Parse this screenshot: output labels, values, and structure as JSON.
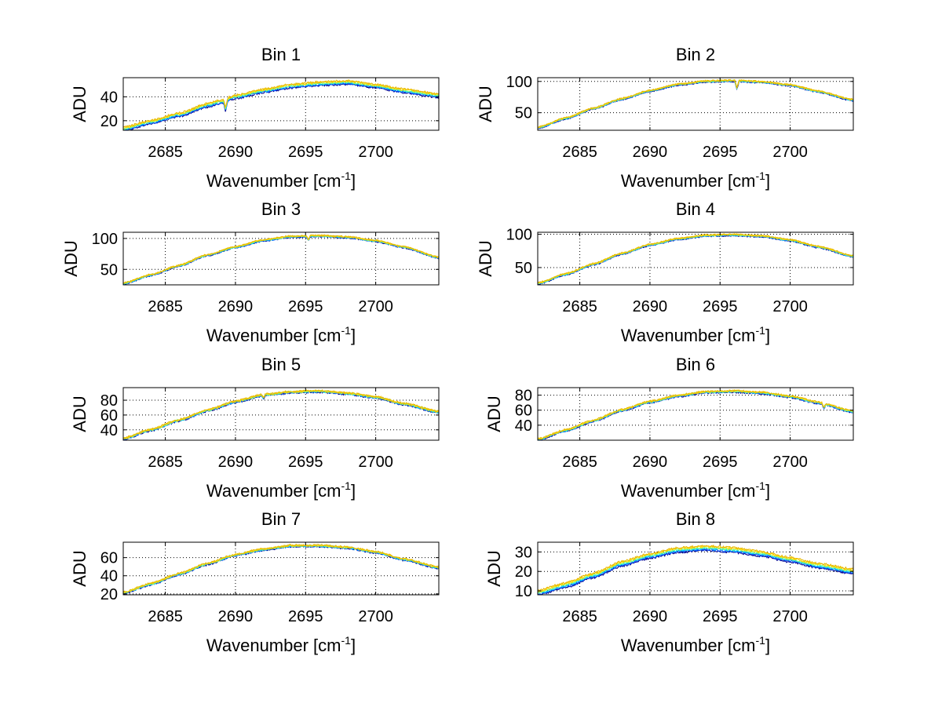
{
  "figure": {
    "colors": [
      "#00008f",
      "#0050ff",
      "#00cfff",
      "#7fff7f",
      "#ffd800",
      "#e8b800"
    ],
    "axes_color": "#000000",
    "grid": "dotted"
  },
  "chart_data": [
    {
      "type": "line",
      "title": "Bin 1",
      "xlabel": "Wavenumber [cm",
      "xlabel_sup": "-1",
      "xlabel_tail": "]",
      "ylabel": "ADU",
      "xlim": [
        2682,
        2704.5
      ],
      "ylim": [
        12,
        56
      ],
      "xticks": [
        2685,
        2690,
        2695,
        2700
      ],
      "yticks": [
        20,
        40
      ],
      "x": [
        2682,
        2684,
        2686,
        2688,
        2689,
        2690,
        2692,
        2694,
        2696,
        2698,
        2700,
        2702,
        2704.5
      ],
      "y": [
        13,
        19,
        25,
        33,
        36,
        40,
        45,
        49,
        51,
        52,
        49,
        45,
        41
      ],
      "dips": [
        [
          2689.3,
          8
        ]
      ],
      "spread": 1.5,
      "noise": 0.8
    },
    {
      "type": "line",
      "title": "Bin 2",
      "xlabel": "Wavenumber [cm",
      "xlabel_sup": "-1",
      "xlabel_tail": "]",
      "ylabel": "ADU",
      "xlim": [
        2682,
        2704.5
      ],
      "ylim": [
        22,
        106
      ],
      "xticks": [
        2685,
        2690,
        2695,
        2700
      ],
      "yticks": [
        50,
        100
      ],
      "x": [
        2682,
        2684,
        2686,
        2688,
        2690,
        2692,
        2694,
        2696,
        2698,
        2700,
        2702,
        2704.5
      ],
      "y": [
        26,
        41,
        57,
        72,
        85,
        95,
        100,
        101,
        99,
        94,
        84,
        70
      ],
      "dips": [
        [
          2696.2,
          12
        ]
      ],
      "spread": 1.0,
      "noise": 1.2
    },
    {
      "type": "line",
      "title": "Bin 3",
      "xlabel": "Wavenumber [cm",
      "xlabel_sup": "-1",
      "xlabel_tail": "]",
      "ylabel": "ADU",
      "xlim": [
        2682,
        2704.5
      ],
      "ylim": [
        25,
        110
      ],
      "xticks": [
        2685,
        2690,
        2695,
        2700
      ],
      "yticks": [
        50,
        100
      ],
      "x": [
        2682,
        2684,
        2686,
        2688,
        2690,
        2692,
        2694,
        2696,
        2698,
        2700,
        2702,
        2704.5
      ],
      "y": [
        27,
        41,
        56,
        73,
        86,
        97,
        103,
        104,
        102,
        96,
        86,
        69
      ],
      "dips": [
        [
          2695.2,
          6
        ]
      ],
      "spread": 1.0,
      "noise": 1.2
    },
    {
      "type": "line",
      "title": "Bin 4",
      "xlabel": "Wavenumber [cm",
      "xlabel_sup": "-1",
      "xlabel_tail": "]",
      "ylabel": "ADU",
      "xlim": [
        2682,
        2704.5
      ],
      "ylim": [
        24,
        103
      ],
      "xticks": [
        2685,
        2690,
        2695,
        2700
      ],
      "yticks": [
        50,
        100
      ],
      "x": [
        2682,
        2684,
        2686,
        2688,
        2690,
        2692,
        2694,
        2696,
        2698,
        2700,
        2702,
        2704.5
      ],
      "y": [
        26,
        40,
        55,
        71,
        84,
        93,
        98,
        99,
        97,
        91,
        81,
        67
      ],
      "dips": [],
      "spread": 1.0,
      "noise": 1.1
    },
    {
      "type": "line",
      "title": "Bin 5",
      "xlabel": "Wavenumber [cm",
      "xlabel_sup": "-1",
      "xlabel_tail": "]",
      "ylabel": "ADU",
      "xlim": [
        2682,
        2704.5
      ],
      "ylim": [
        26,
        97
      ],
      "xticks": [
        2685,
        2690,
        2695,
        2700
      ],
      "yticks": [
        40,
        60,
        80
      ],
      "x": [
        2682,
        2684,
        2686,
        2688,
        2690,
        2692,
        2694,
        2696,
        2698,
        2700,
        2702,
        2704.5
      ],
      "y": [
        28,
        40,
        53,
        66,
        78,
        87,
        91,
        92,
        89,
        84,
        75,
        64
      ],
      "dips": [
        [
          2692.0,
          4
        ]
      ],
      "spread": 1.0,
      "noise": 1.3
    },
    {
      "type": "line",
      "title": "Bin 6",
      "xlabel": "Wavenumber [cm",
      "xlabel_sup": "-1",
      "xlabel_tail": "]",
      "ylabel": "ADU",
      "xlim": [
        2682,
        2704.5
      ],
      "ylim": [
        20,
        90
      ],
      "xticks": [
        2685,
        2690,
        2695,
        2700
      ],
      "yticks": [
        40,
        60,
        80
      ],
      "x": [
        2682,
        2684,
        2686,
        2688,
        2690,
        2692,
        2694,
        2696,
        2698,
        2700,
        2702,
        2704.5
      ],
      "y": [
        21,
        33,
        46,
        60,
        71,
        79,
        84,
        85,
        83,
        78,
        70,
        58
      ],
      "dips": [
        [
          2702.4,
          6
        ]
      ],
      "spread": 1.0,
      "noise": 1.2
    },
    {
      "type": "line",
      "title": "Bin 7",
      "xlabel": "Wavenumber [cm",
      "xlabel_sup": "-1",
      "xlabel_tail": "]",
      "ylabel": "ADU",
      "xlim": [
        2682,
        2704.5
      ],
      "ylim": [
        19,
        77
      ],
      "xticks": [
        2685,
        2690,
        2695,
        2700
      ],
      "yticks": [
        20,
        40,
        60
      ],
      "x": [
        2682,
        2684,
        2686,
        2688,
        2690,
        2692,
        2694,
        2696,
        2698,
        2700,
        2702,
        2704.5
      ],
      "y": [
        21,
        31,
        42,
        53,
        63,
        69,
        73,
        73,
        71,
        66,
        58,
        49
      ],
      "dips": [],
      "spread": 0.8,
      "noise": 1.0
    },
    {
      "type": "line",
      "title": "Bin 8",
      "xlabel": "Wavenumber [cm",
      "xlabel_sup": "-1",
      "xlabel_tail": "]",
      "ylabel": "ADU",
      "xlim": [
        2682,
        2704.5
      ],
      "ylim": [
        8,
        35
      ],
      "xticks": [
        2685,
        2690,
        2695,
        2700
      ],
      "yticks": [
        10,
        20,
        30
      ],
      "x": [
        2682,
        2684,
        2686,
        2688,
        2690,
        2692,
        2694,
        2696,
        2698,
        2700,
        2702,
        2704.5
      ],
      "y": [
        9,
        13,
        18,
        24,
        28,
        31,
        32,
        31,
        29,
        26,
        23,
        20
      ],
      "dips": [],
      "spread": 1.2,
      "noise": 0.5
    }
  ]
}
